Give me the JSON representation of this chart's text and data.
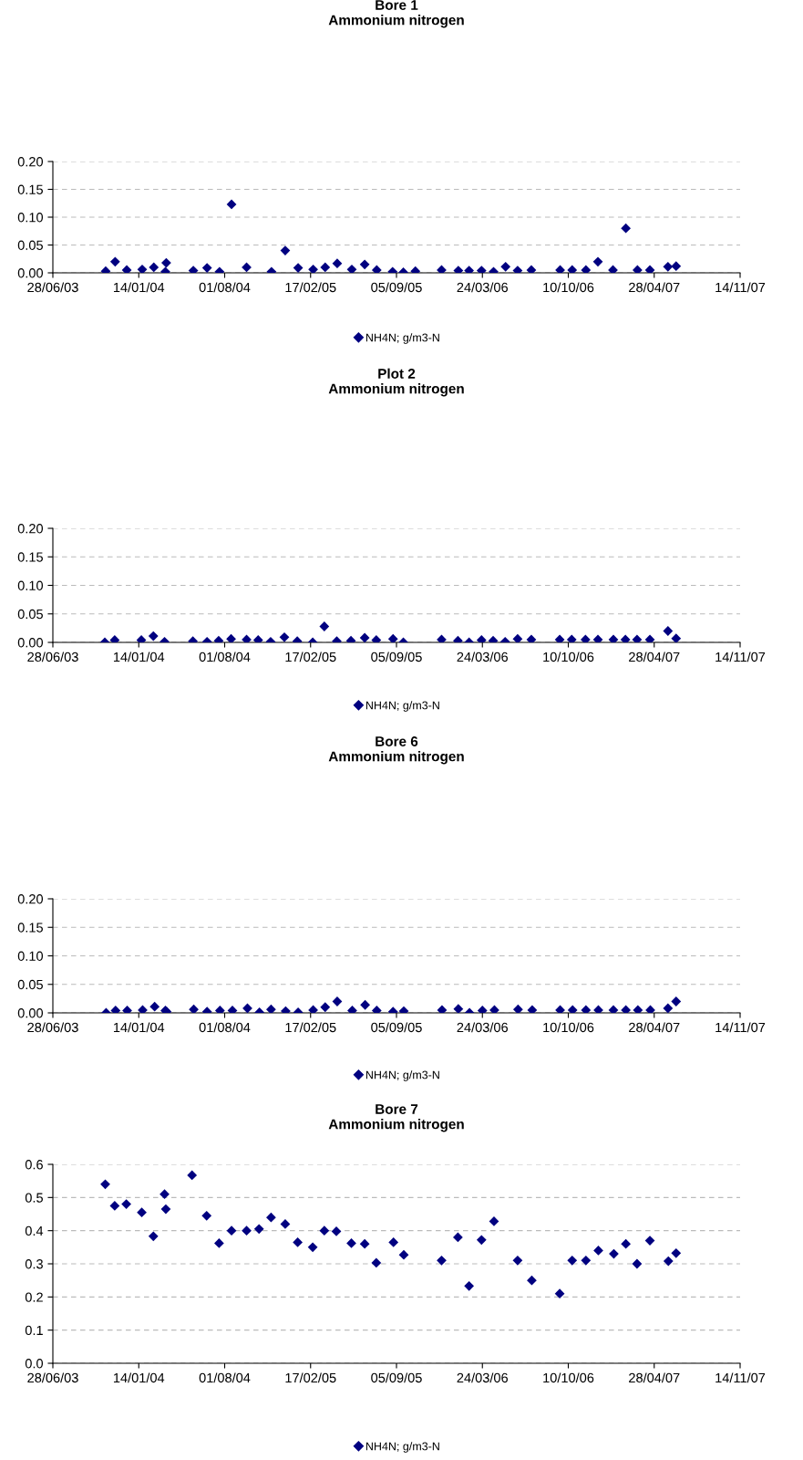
{
  "chart_data": [
    {
      "type": "scatter",
      "title": "Bore 1\nAmmonium nitrogen",
      "marker": "diamond",
      "grid": "y",
      "legend": "bottom",
      "xlim": [
        "2003-06-28",
        "2007-11-14"
      ],
      "xticks": [
        {
          "value": "2003-06-28",
          "label": "28/06/03"
        },
        {
          "value": "2004-01-14",
          "label": "14/01/04"
        },
        {
          "value": "2004-08-01",
          "label": "01/08/04"
        },
        {
          "value": "2005-02-17",
          "label": "17/02/05"
        },
        {
          "value": "2005-09-05",
          "label": "05/09/05"
        },
        {
          "value": "2006-03-24",
          "label": "24/03/06"
        },
        {
          "value": "2006-10-10",
          "label": "10/10/06"
        },
        {
          "value": "2007-04-28",
          "label": "28/04/07"
        },
        {
          "value": "2007-11-14",
          "label": "14/11/07"
        }
      ],
      "ylim": [
        0,
        0.2
      ],
      "yticks": [
        {
          "value": 0,
          "label": "0.00"
        },
        {
          "value": 0.05,
          "label": "0.05"
        },
        {
          "value": 0.1,
          "label": "0.10"
        },
        {
          "value": 0.15,
          "label": "0.15"
        },
        {
          "value": 0.2,
          "label": "0.20"
        }
      ],
      "series": [
        {
          "name": "NH4N; g/m3-N",
          "color": "#000080",
          "x": [
            "2003-10-29",
            "2003-11-20",
            "2003-12-17",
            "2004-01-22",
            "2004-02-18",
            "2004-03-16",
            "2004-03-18",
            "2004-05-20",
            "2004-06-21",
            "2004-07-20",
            "2004-08-17",
            "2004-09-21",
            "2004-11-18",
            "2004-12-20",
            "2005-01-19",
            "2005-02-23",
            "2005-03-23",
            "2005-04-20",
            "2005-05-24",
            "2005-06-23",
            "2005-07-21",
            "2005-08-27",
            "2005-09-21",
            "2005-10-19",
            "2005-12-19",
            "2006-01-27",
            "2006-02-21",
            "2006-03-22",
            "2006-04-19",
            "2006-05-17",
            "2006-06-14",
            "2006-07-16",
            "2006-09-21",
            "2006-10-19",
            "2006-11-20",
            "2006-12-18",
            "2007-01-22",
            "2007-02-21",
            "2007-03-20",
            "2007-04-18",
            "2007-05-30",
            "2007-06-18"
          ],
          "values": [
            0.003,
            0.02,
            0.005,
            0.006,
            0.01,
            0.002,
            0.018,
            0.004,
            0.009,
            0.002,
            0.123,
            0.01,
            0.002,
            0.04,
            0.009,
            0.006,
            0.01,
            0.017,
            0.006,
            0.015,
            0.005,
            0.002,
            0.001,
            0.003,
            0.005,
            0.004,
            0.004,
            0.004,
            0.002,
            0.011,
            0.004,
            0.005,
            0.005,
            0.005,
            0.005,
            0.02,
            0.005,
            0.08,
            0.005,
            0.005,
            0.011,
            0.012
          ]
        }
      ]
    },
    {
      "type": "scatter",
      "title": "Plot 2\nAmmonium nitrogen",
      "marker": "diamond",
      "grid": "y",
      "legend": "bottom",
      "xlim": [
        "2003-06-28",
        "2007-11-14"
      ],
      "xticks": [
        {
          "value": "2003-06-28",
          "label": "28/06/03"
        },
        {
          "value": "2004-01-14",
          "label": "14/01/04"
        },
        {
          "value": "2004-08-01",
          "label": "01/08/04"
        },
        {
          "value": "2005-02-17",
          "label": "17/02/05"
        },
        {
          "value": "2005-09-05",
          "label": "05/09/05"
        },
        {
          "value": "2006-03-24",
          "label": "24/03/06"
        },
        {
          "value": "2006-10-10",
          "label": "10/10/06"
        },
        {
          "value": "2007-04-28",
          "label": "28/04/07"
        },
        {
          "value": "2007-11-14",
          "label": "14/11/07"
        }
      ],
      "ylim": [
        0,
        0.2
      ],
      "yticks": [
        {
          "value": 0,
          "label": "0.00"
        },
        {
          "value": 0.05,
          "label": "0.05"
        },
        {
          "value": 0.1,
          "label": "0.10"
        },
        {
          "value": 0.15,
          "label": "0.15"
        },
        {
          "value": 0.2,
          "label": "0.20"
        }
      ],
      "series": [
        {
          "name": "NH4N; g/m3-N",
          "color": "#000080",
          "x": [
            "2003-10-27",
            "2003-11-19",
            "2004-01-20",
            "2004-02-17",
            "2004-03-14",
            "2004-05-19",
            "2004-06-21",
            "2004-07-18",
            "2004-08-16",
            "2004-09-21",
            "2004-10-18",
            "2004-11-16",
            "2004-12-18",
            "2005-01-17",
            "2005-02-22",
            "2005-03-21",
            "2005-04-19",
            "2005-05-22",
            "2005-06-23",
            "2005-07-20",
            "2005-08-28",
            "2005-09-21",
            "2005-12-19",
            "2006-01-26",
            "2006-02-21",
            "2006-03-22",
            "2006-04-18",
            "2006-05-16",
            "2006-06-14",
            "2006-07-16",
            "2006-09-20",
            "2006-10-18",
            "2006-11-19",
            "2006-12-18",
            "2007-01-23",
            "2007-02-20",
            "2007-03-19",
            "2007-04-18",
            "2007-05-30",
            "2007-06-18"
          ],
          "values": [
            0.0,
            0.004,
            0.004,
            0.011,
            0.001,
            0.002,
            0.001,
            0.003,
            0.006,
            0.005,
            0.004,
            0.001,
            0.009,
            0.002,
            0.0,
            0.028,
            0.002,
            0.003,
            0.008,
            0.004,
            0.006,
            0.0,
            0.005,
            0.003,
            0.0,
            0.004,
            0.003,
            0.001,
            0.006,
            0.005,
            0.005,
            0.005,
            0.005,
            0.005,
            0.005,
            0.005,
            0.005,
            0.005,
            0.02,
            0.007
          ]
        }
      ]
    },
    {
      "type": "scatter",
      "title": "Bore 6\nAmmonium nitrogen",
      "marker": "diamond",
      "grid": "y",
      "legend": "bottom",
      "xlim": [
        "2003-06-28",
        "2007-11-14"
      ],
      "xticks": [
        {
          "value": "2003-06-28",
          "label": "28/06/03"
        },
        {
          "value": "2004-01-14",
          "label": "14/01/04"
        },
        {
          "value": "2004-08-01",
          "label": "01/08/04"
        },
        {
          "value": "2005-02-17",
          "label": "17/02/05"
        },
        {
          "value": "2005-09-05",
          "label": "05/09/05"
        },
        {
          "value": "2006-03-24",
          "label": "24/03/06"
        },
        {
          "value": "2006-10-10",
          "label": "10/10/06"
        },
        {
          "value": "2007-04-28",
          "label": "28/04/07"
        },
        {
          "value": "2007-11-14",
          "label": "14/11/07"
        }
      ],
      "ylim": [
        0,
        0.2
      ],
      "yticks": [
        {
          "value": 0,
          "label": "0.00"
        },
        {
          "value": 0.05,
          "label": "0.05"
        },
        {
          "value": 0.1,
          "label": "0.10"
        },
        {
          "value": 0.15,
          "label": "0.15"
        },
        {
          "value": 0.2,
          "label": "0.20"
        }
      ],
      "series": [
        {
          "name": "NH4N; g/m3-N",
          "color": "#000080",
          "x": [
            "2003-10-30",
            "2003-11-21",
            "2003-12-18",
            "2004-01-23",
            "2004-02-20",
            "2004-03-16",
            "2004-03-19",
            "2004-05-21",
            "2004-06-21",
            "2004-07-21",
            "2004-08-19",
            "2004-09-23",
            "2004-10-21",
            "2004-11-17",
            "2004-12-21",
            "2005-01-19",
            "2005-02-23",
            "2005-03-23",
            "2005-04-20",
            "2005-05-25",
            "2005-06-24",
            "2005-07-21",
            "2005-08-28",
            "2005-09-22",
            "2005-12-20",
            "2006-01-27",
            "2006-02-22",
            "2006-03-24",
            "2006-04-21",
            "2006-06-15",
            "2006-07-18",
            "2006-09-21",
            "2006-10-20",
            "2006-11-20",
            "2006-12-19",
            "2007-01-23",
            "2007-02-21",
            "2007-03-21",
            "2007-04-19",
            "2007-05-30",
            "2007-06-18"
          ],
          "values": [
            0.0,
            0.004,
            0.004,
            0.005,
            0.011,
            0.004,
            0.002,
            0.006,
            0.002,
            0.004,
            0.004,
            0.008,
            0.001,
            0.006,
            0.003,
            0.001,
            0.005,
            0.01,
            0.02,
            0.004,
            0.014,
            0.004,
            0.002,
            0.003,
            0.005,
            0.007,
            0.0,
            0.004,
            0.005,
            0.006,
            0.005,
            0.005,
            0.005,
            0.005,
            0.005,
            0.005,
            0.005,
            0.005,
            0.005,
            0.008,
            0.02
          ]
        }
      ]
    },
    {
      "type": "scatter",
      "title": "Bore 7\nAmmonium nitrogen",
      "marker": "diamond",
      "grid": "y",
      "legend": "bottom",
      "xlim": [
        "2003-06-28",
        "2007-11-14"
      ],
      "xticks": [
        {
          "value": "2003-06-28",
          "label": "28/06/03"
        },
        {
          "value": "2004-01-14",
          "label": "14/01/04"
        },
        {
          "value": "2004-08-01",
          "label": "01/08/04"
        },
        {
          "value": "2005-02-17",
          "label": "17/02/05"
        },
        {
          "value": "2005-09-05",
          "label": "05/09/05"
        },
        {
          "value": "2006-03-24",
          "label": "24/03/06"
        },
        {
          "value": "2006-10-10",
          "label": "10/10/06"
        },
        {
          "value": "2007-04-28",
          "label": "28/04/07"
        },
        {
          "value": "2007-11-14",
          "label": "14/11/07"
        }
      ],
      "ylim": [
        0,
        0.6
      ],
      "yticks": [
        {
          "value": 0,
          "label": "0.0"
        },
        {
          "value": 0.1,
          "label": "0.1"
        },
        {
          "value": 0.2,
          "label": "0.2"
        },
        {
          "value": 0.3,
          "label": "0.3"
        },
        {
          "value": 0.4,
          "label": "0.4"
        },
        {
          "value": 0.5,
          "label": "0.5"
        },
        {
          "value": 0.6,
          "label": "0.6"
        }
      ],
      "series": [
        {
          "name": "NH4N; g/m3-N",
          "color": "#000080",
          "x": [
            "2003-10-28",
            "2003-11-19",
            "2003-12-16",
            "2004-01-21",
            "2004-02-17",
            "2004-03-14",
            "2004-03-17",
            "2004-05-17",
            "2004-06-20",
            "2004-07-19",
            "2004-08-17",
            "2004-09-21",
            "2004-10-20",
            "2004-11-17",
            "2004-12-20",
            "2005-01-18",
            "2005-02-22",
            "2005-03-21",
            "2005-04-18",
            "2005-05-23",
            "2005-06-23",
            "2005-07-20",
            "2005-08-29",
            "2005-09-22",
            "2005-12-19",
            "2006-01-26",
            "2006-02-21",
            "2006-03-22",
            "2006-04-20",
            "2006-06-14",
            "2006-07-17",
            "2006-09-20",
            "2006-10-19",
            "2006-11-20",
            "2006-12-19",
            "2007-01-24",
            "2007-02-21",
            "2007-03-19",
            "2007-04-18",
            "2007-05-31",
            "2007-06-18"
          ],
          "values": [
            0.54,
            0.475,
            0.48,
            0.455,
            0.383,
            0.51,
            0.465,
            0.567,
            0.445,
            0.362,
            0.4,
            0.4,
            0.405,
            0.44,
            0.42,
            0.365,
            0.35,
            0.4,
            0.398,
            0.362,
            0.36,
            0.303,
            0.365,
            0.327,
            0.31,
            0.38,
            0.233,
            0.372,
            0.428,
            0.31,
            0.25,
            0.21,
            0.31,
            0.31,
            0.34,
            0.33,
            0.36,
            0.3,
            0.37,
            0.308,
            0.332
          ]
        }
      ]
    }
  ]
}
